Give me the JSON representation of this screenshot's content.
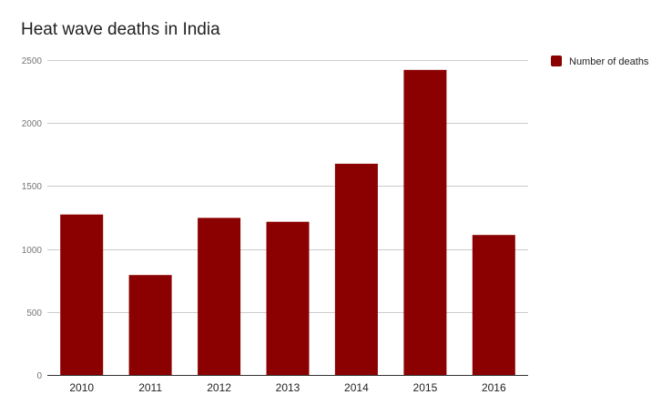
{
  "chart_data": {
    "type": "bar",
    "title": "Heat wave deaths in India",
    "xlabel": "",
    "ylabel": "",
    "categories": [
      "2010",
      "2011",
      "2012",
      "2013",
      "2014",
      "2015",
      "2016"
    ],
    "series": [
      {
        "name": "Number of deaths",
        "values": [
          1274,
          793,
          1247,
          1216,
          1677,
          2422,
          1111
        ],
        "color": "#8b0000"
      }
    ],
    "ylim": [
      0,
      2500
    ],
    "yticks": [
      "0",
      "500",
      "1000",
      "1500",
      "2000",
      "2500"
    ],
    "ytick_values": [
      0,
      500,
      1000,
      1500,
      2000,
      2500
    ],
    "grid": true,
    "legend_position": "right"
  }
}
